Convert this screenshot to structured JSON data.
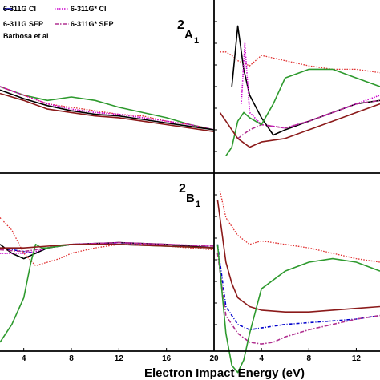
{
  "chart_data": [
    {
      "type": "line",
      "panel": "bottom-left",
      "xlabel": "Electron Impact Energy (eV)",
      "xlim": [
        2,
        20
      ],
      "x_ticks": [
        4,
        8,
        12,
        16,
        20
      ],
      "x_tick_labels": [
        "4",
        "8",
        "12",
        "16",
        "20"
      ],
      "legend_position": "top-left of upper-left panel",
      "series": [
        {
          "name": "6-311G CI",
          "color": "#0000cc",
          "x": [
            2,
            4,
            5,
            6,
            8,
            10,
            12,
            14,
            16,
            18,
            20
          ],
          "y": [
            0.58,
            0.56,
            0.55,
            0.58,
            0.6,
            0.6,
            0.61,
            0.6,
            0.6,
            0.59,
            0.58
          ]
        },
        {
          "name": "6-311G SEP",
          "color": "#000000",
          "x": [
            2,
            3,
            4,
            5,
            6,
            8,
            12,
            16,
            20
          ],
          "y": [
            0.6,
            0.55,
            0.52,
            0.55,
            0.58,
            0.6,
            0.61,
            0.6,
            0.58
          ]
        },
        {
          "name": "6-311G* CI",
          "color": "#cc00cc",
          "x": [
            2,
            4,
            5,
            6,
            8,
            12,
            16,
            20
          ],
          "y": [
            0.55,
            0.55,
            0.56,
            0.58,
            0.6,
            0.61,
            0.6,
            0.59
          ]
        },
        {
          "name": "6-311G* SEP",
          "color": "#b03090",
          "x": [
            2,
            4,
            6,
            8,
            12,
            16,
            20
          ],
          "y": [
            0.57,
            0.56,
            0.58,
            0.6,
            0.61,
            0.6,
            0.59
          ]
        },
        {
          "name": "Barbosa et al",
          "color": "#e03030",
          "x": [
            2,
            3,
            4,
            5,
            6,
            7,
            8,
            10,
            12,
            14,
            16,
            18,
            20
          ],
          "y": [
            0.75,
            0.68,
            0.55,
            0.48,
            0.5,
            0.52,
            0.55,
            0.58,
            0.6,
            0.6,
            0.59,
            0.58,
            0.57
          ]
        },
        {
          "name": "",
          "color": "#2e9a2e",
          "x": [
            2,
            3,
            4,
            4.6,
            5,
            5.5,
            6,
            8,
            12,
            20
          ],
          "y": [
            0.05,
            0.15,
            0.3,
            0.5,
            0.6,
            0.58,
            0.58,
            0.6,
            0.6,
            0.58
          ]
        },
        {
          "name": "",
          "color": "#8b1a1a",
          "x": [
            2,
            4,
            6,
            8,
            12,
            16,
            20
          ],
          "y": [
            0.58,
            0.58,
            0.59,
            0.6,
            0.6,
            0.59,
            0.58
          ]
        }
      ]
    },
    {
      "type": "line",
      "panel": "bottom-right",
      "annotation": "2B1",
      "xlim": [
        0,
        14
      ],
      "x_ticks": [
        4,
        8,
        12
      ],
      "x_tick_labels": [
        "4",
        "8",
        "12"
      ],
      "series": [
        {
          "name": "Barbosa et al",
          "color": "#e03030",
          "x": [
            0.5,
            1,
            2,
            3,
            4,
            6,
            8,
            10,
            12,
            14
          ],
          "y": [
            0.9,
            0.75,
            0.65,
            0.6,
            0.62,
            0.6,
            0.58,
            0.55,
            0.52,
            0.5
          ]
        },
        {
          "name": "",
          "color": "#8b1a1a",
          "x": [
            0.3,
            1,
            1.5,
            2,
            3,
            4,
            6,
            8,
            10,
            12,
            14
          ],
          "y": [
            0.85,
            0.5,
            0.38,
            0.3,
            0.25,
            0.23,
            0.22,
            0.22,
            0.23,
            0.24,
            0.25
          ]
        },
        {
          "name": "6-311G CI",
          "color": "#0000cc",
          "x": [
            0.3,
            1,
            2,
            3,
            4,
            6,
            8,
            10,
            12,
            14
          ],
          "y": [
            0.6,
            0.25,
            0.15,
            0.12,
            0.13,
            0.15,
            0.16,
            0.17,
            0.18,
            0.2
          ]
        },
        {
          "name": "6-311G* SEP",
          "color": "#b03090",
          "x": [
            0.3,
            1,
            2,
            3,
            4,
            5,
            6,
            8,
            10,
            12,
            14
          ],
          "y": [
            0.55,
            0.2,
            0.1,
            0.05,
            0.04,
            0.05,
            0.08,
            0.12,
            0.15,
            0.18,
            0.2
          ]
        },
        {
          "name": "",
          "color": "#2e9a2e",
          "x": [
            0.3,
            1,
            1.5,
            2,
            2.5,
            3,
            4,
            6,
            8,
            10,
            12,
            14
          ],
          "y": [
            0.6,
            0.1,
            -0.08,
            -0.12,
            -0.05,
            0.1,
            0.35,
            0.45,
            0.5,
            0.52,
            0.5,
            0.45
          ]
        }
      ]
    },
    {
      "type": "line",
      "panel": "top-left",
      "xlim": [
        2,
        20
      ],
      "series": [
        {
          "name": "",
          "color": "#2e9a2e",
          "x": [
            2,
            4,
            6,
            8,
            10,
            12,
            14,
            16,
            18,
            20
          ],
          "y": [
            0.5,
            0.45,
            0.42,
            0.44,
            0.42,
            0.38,
            0.35,
            0.32,
            0.28,
            0.25
          ]
        },
        {
          "name": "Barbosa et al",
          "color": "#e03030",
          "x": [
            2,
            4,
            6,
            8,
            10,
            12,
            14,
            16,
            18,
            20
          ],
          "y": [
            0.5,
            0.45,
            0.4,
            0.38,
            0.36,
            0.34,
            0.33,
            0.3,
            0.28,
            0.25
          ]
        },
        {
          "name": "6-311G* CI",
          "color": "#cc00cc",
          "x": [
            2,
            4,
            6,
            8,
            10,
            12,
            14,
            16,
            18,
            20
          ],
          "y": [
            0.5,
            0.45,
            0.4,
            0.37,
            0.35,
            0.34,
            0.32,
            0.3,
            0.28,
            0.25
          ]
        },
        {
          "name": "6-311G SEP",
          "color": "#000000",
          "x": [
            2,
            4,
            6,
            8,
            10,
            12,
            14,
            16,
            18,
            20
          ],
          "y": [
            0.48,
            0.43,
            0.39,
            0.36,
            0.34,
            0.33,
            0.31,
            0.29,
            0.27,
            0.25
          ]
        },
        {
          "name": "",
          "color": "#8b1a1a",
          "x": [
            2,
            4,
            6,
            8,
            10,
            12,
            14,
            16,
            18,
            20
          ],
          "y": [
            0.46,
            0.42,
            0.37,
            0.35,
            0.33,
            0.32,
            0.3,
            0.28,
            0.26,
            0.24
          ]
        }
      ]
    },
    {
      "type": "line",
      "panel": "top-right",
      "annotation": "2A1",
      "xlim": [
        0,
        14
      ],
      "series": [
        {
          "name": "Barbosa et al",
          "color": "#e03030",
          "x": [
            0.5,
            1,
            1.5,
            2,
            3,
            4,
            6,
            8,
            10,
            12,
            14
          ],
          "y": [
            0.7,
            0.7,
            0.68,
            0.65,
            0.62,
            0.68,
            0.65,
            0.62,
            0.6,
            0.6,
            0.58
          ]
        },
        {
          "name": "6-311G SEP",
          "color": "#000000",
          "x": [
            1.5,
            2,
            2.5,
            3,
            4,
            5,
            6,
            8,
            10,
            12,
            14
          ],
          "y": [
            0.5,
            0.85,
            0.6,
            0.45,
            0.32,
            0.22,
            0.25,
            0.3,
            0.35,
            0.4,
            0.42
          ]
        },
        {
          "name": "6-311G* CI",
          "color": "#cc00cc",
          "x": [
            2.3,
            2.6,
            3,
            4,
            6,
            8,
            10,
            12,
            14
          ],
          "y": [
            0.4,
            0.75,
            0.35,
            0.28,
            0.26,
            0.3,
            0.35,
            0.4,
            0.45
          ]
        },
        {
          "name": "6-311G* SEP",
          "color": "#b03090",
          "x": [
            2,
            3,
            4,
            6,
            8,
            10,
            12,
            14
          ],
          "y": [
            0.2,
            0.25,
            0.28,
            0.26,
            0.3,
            0.35,
            0.4,
            0.42
          ]
        },
        {
          "name": "",
          "color": "#2e9a2e",
          "x": [
            1,
            1.5,
            2,
            2.5,
            3,
            4,
            5,
            6,
            8,
            10,
            12,
            14
          ],
          "y": [
            0.1,
            0.15,
            0.3,
            0.35,
            0.32,
            0.28,
            0.4,
            0.55,
            0.6,
            0.6,
            0.55,
            0.5
          ]
        },
        {
          "name": "",
          "color": "#8b1a1a",
          "x": [
            0.5,
            1,
            2,
            3,
            4,
            6,
            8,
            10,
            12,
            14
          ],
          "y": [
            0.35,
            0.3,
            0.2,
            0.15,
            0.18,
            0.2,
            0.25,
            0.3,
            0.35,
            0.4
          ]
        }
      ]
    }
  ],
  "legend": {
    "items": [
      {
        "label": "6-311G CI",
        "color": "#0000cc"
      },
      {
        "label": "6-311G* CI",
        "color": "#cc00cc"
      },
      {
        "label": "6-311G SEP",
        "color": "#000000"
      },
      {
        "label": "6-311G* SEP",
        "color": "#b03090"
      },
      {
        "label": "Barbosa et al",
        "color": "#e03030"
      }
    ]
  },
  "labels": {
    "xlabel": "Electron Impact Energy (eV)",
    "top_right_annotation_main": "2",
    "top_right_annotation_sub": "A",
    "top_right_annotation_sub2": "1",
    "bottom_right_annotation_main": "2",
    "bottom_right_annotation_sub": "B",
    "bottom_right_annotation_sub2": "1"
  }
}
